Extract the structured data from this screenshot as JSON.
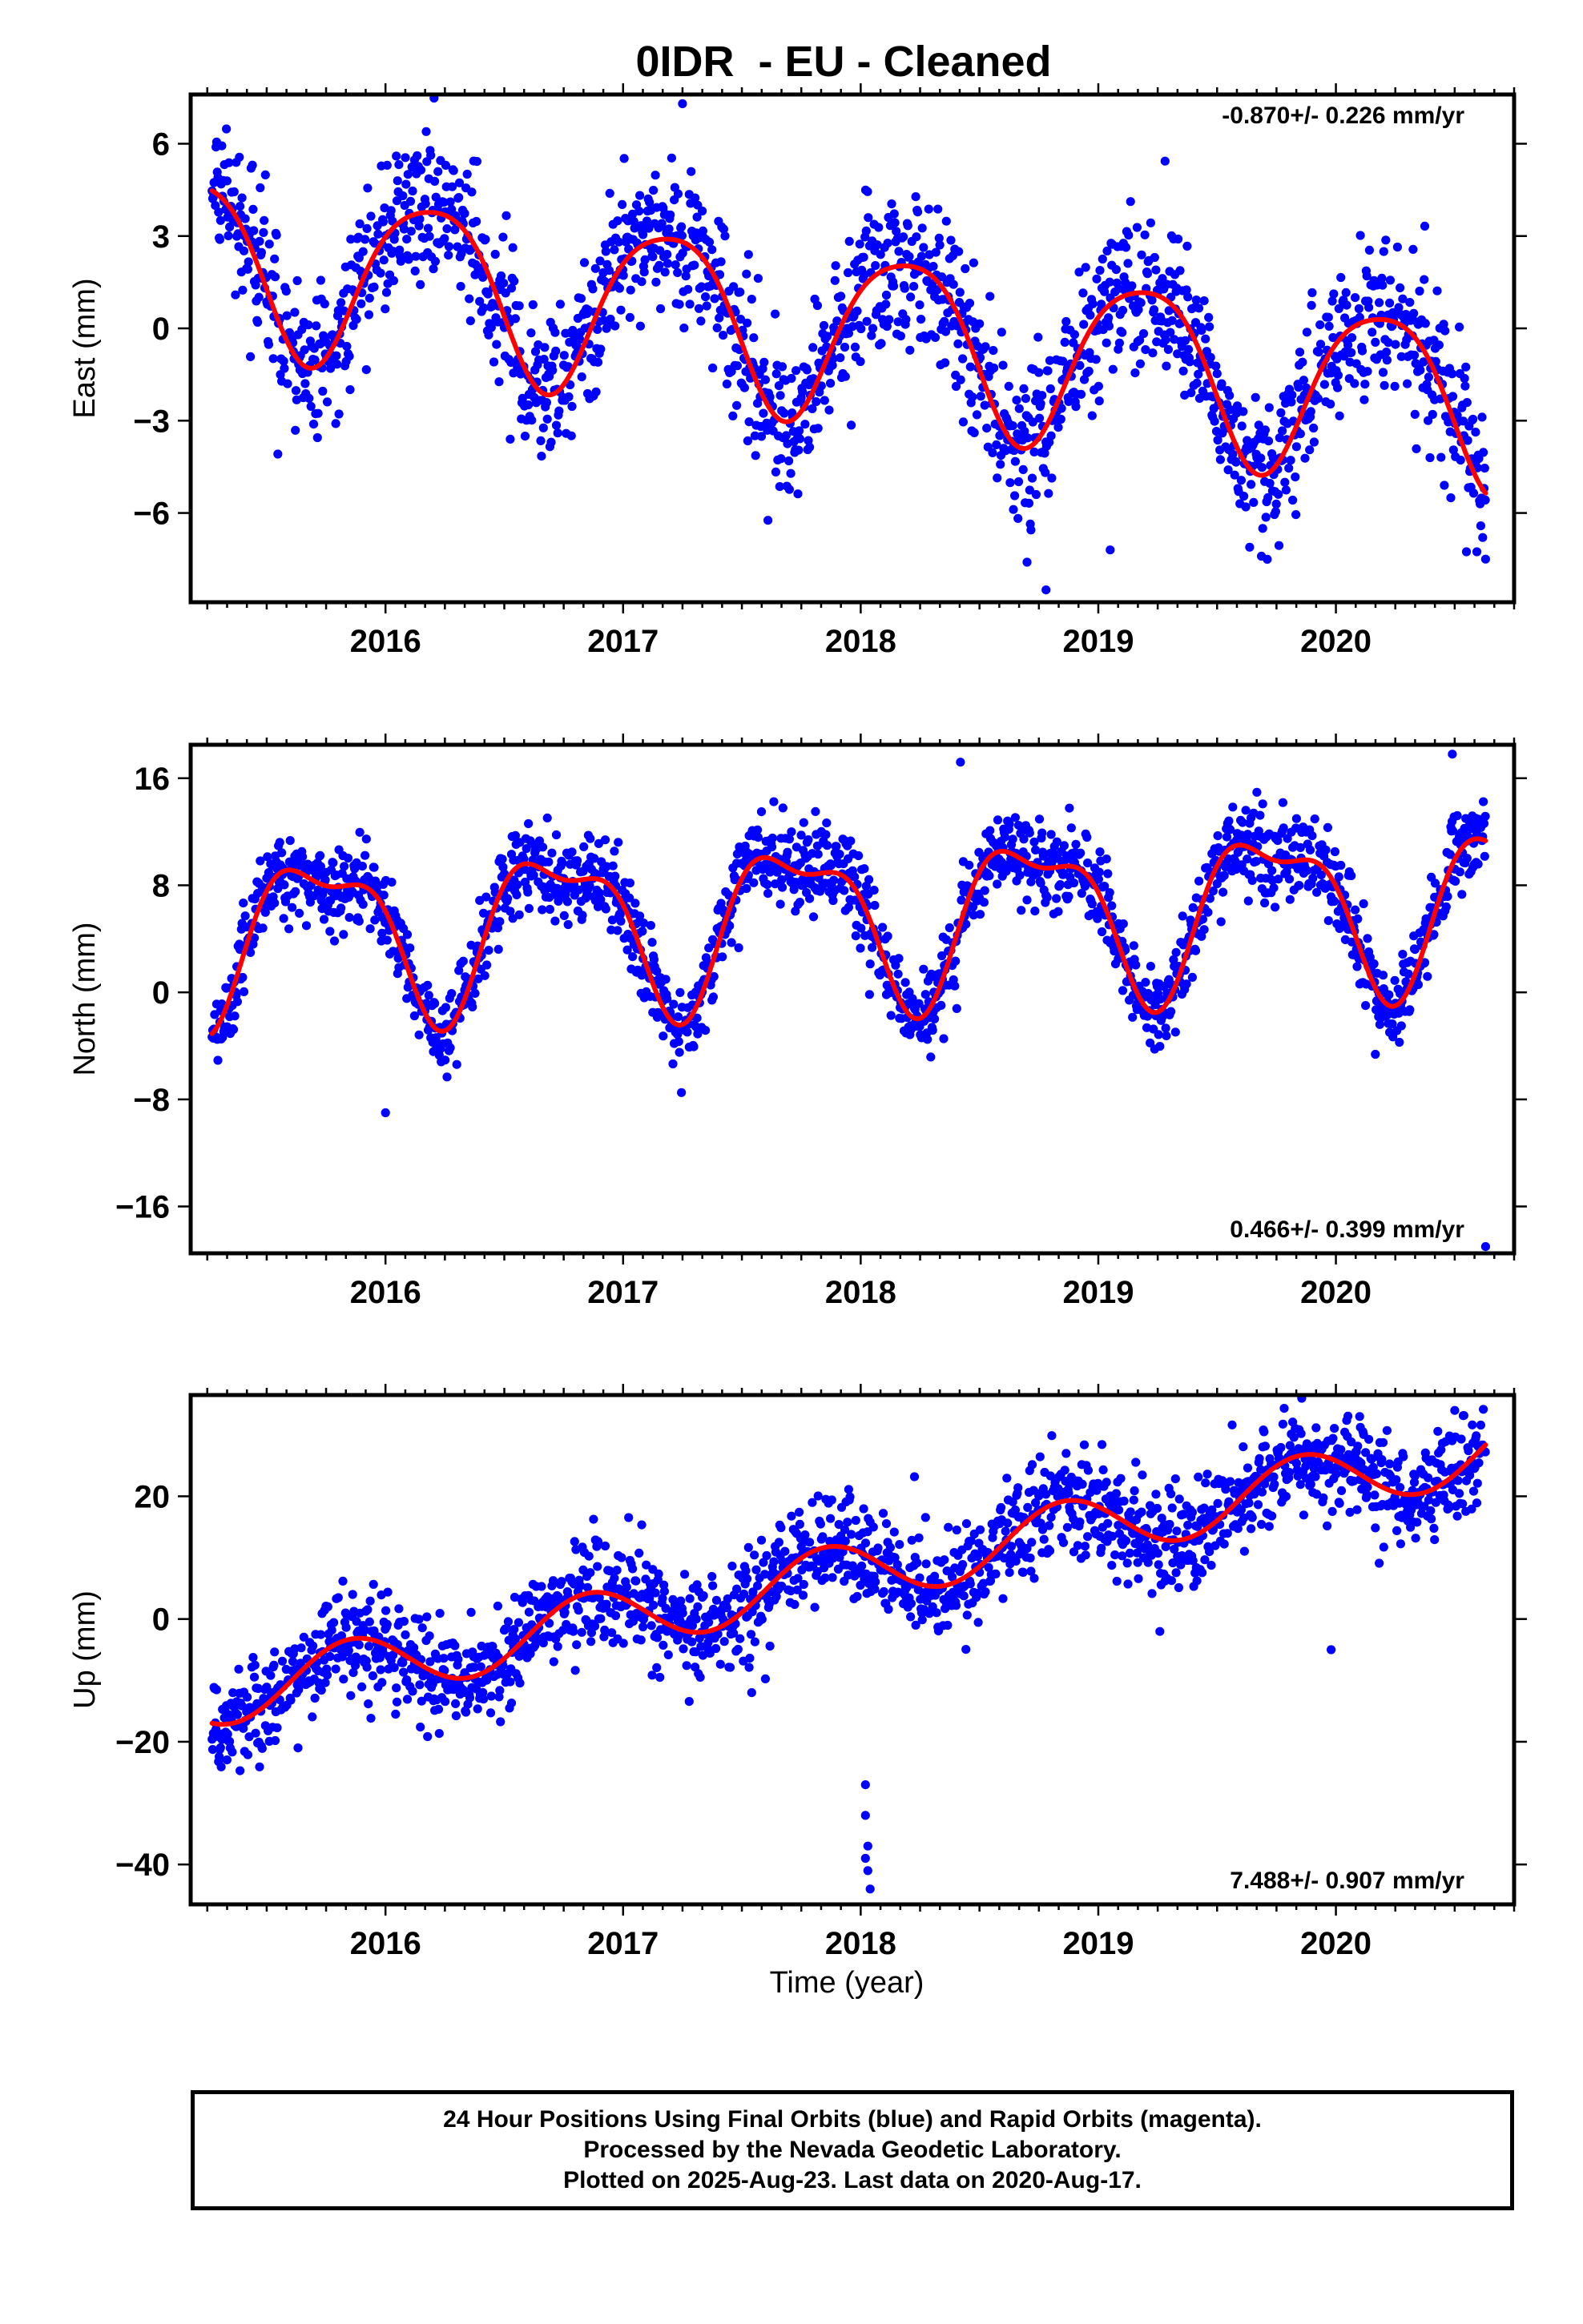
{
  "title": "0IDR  - EU - Cleaned",
  "x_axis_label": "Time (year)",
  "footer": {
    "line1": "24 Hour Positions Using Final Orbits (blue) and Rapid Orbits (magenta).",
    "line2": "Processed by the Nevada Geodetic Laboratory.",
    "line3": "Plotted on 2025-Aug-23. Last data on 2020-Aug-17."
  },
  "colors": {
    "points": "#0000ff",
    "model": "#ff0000",
    "axis": "#000000"
  },
  "chart_data": [
    {
      "type": "scatter",
      "component": "east",
      "ylabel": "East (mm)",
      "rate_text": "-0.870+/- 0.226 mm/yr",
      "rate_position": "top-right",
      "xlim": [
        2015.18,
        2020.75
      ],
      "ylim": [
        -8.9,
        7.6
      ],
      "xticks": [
        2016,
        2017,
        2018,
        2019,
        2020
      ],
      "yticks": [
        6,
        3,
        0,
        -3,
        -6
      ],
      "ytick_labels": [
        "6",
        "3",
        "0",
        "−3",
        "−6"
      ],
      "model": {
        "rate_mm_per_yr": -0.87,
        "offset_mm": -2.4,
        "reference_year": 2020.63,
        "annual_amp": 2.75,
        "annual_phase": 0.4,
        "semiannual_amp": 0.45,
        "semiannual_phase": 2.5
      },
      "noise_sd_mm": 1.25,
      "outliers": [
        {
          "x": 2017.25,
          "y": 7.3
        },
        {
          "x": 2018.78,
          "y": -8.5
        },
        {
          "x": 2020.63,
          "y": -7.5
        },
        {
          "x": 2018.7,
          "y": -7.6
        },
        {
          "x": 2019.05,
          "y": -7.2
        }
      ]
    },
    {
      "type": "scatter",
      "component": "north",
      "ylabel": "North (mm)",
      "rate_text": "0.466+/- 0.399 mm/yr",
      "rate_position": "bottom-right",
      "xlim": [
        2015.18,
        2020.75
      ],
      "ylim": [
        -19.5,
        18.5
      ],
      "xticks": [
        2016,
        2017,
        2018,
        2019,
        2020
      ],
      "yticks": [
        16,
        8,
        0,
        -8,
        -16
      ],
      "ytick_labels": [
        "16",
        "8",
        "0",
        "−8",
        "−16"
      ],
      "model": {
        "rate_mm_per_yr": 0.466,
        "offset_mm": 6.9,
        "reference_year": 2020.63,
        "annual_amp": 5.6,
        "annual_phase": 3.3,
        "semiannual_amp": 2.2,
        "semiannual_phase": 1.6
      },
      "noise_sd_mm": 1.6,
      "outliers": [
        {
          "x": 2020.63,
          "y": -19.0
        },
        {
          "x": 2018.42,
          "y": 17.2
        },
        {
          "x": 2020.49,
          "y": 17.8
        },
        {
          "x": 2016.0,
          "y": -9.0
        }
      ]
    },
    {
      "type": "scatter",
      "component": "up",
      "ylabel": "Up (mm)",
      "rate_text": "7.488+/- 0.907 mm/yr",
      "rate_position": "bottom-right",
      "xlim": [
        2015.18,
        2020.75
      ],
      "ylim": [
        -46.5,
        36.5
      ],
      "xticks": [
        2016,
        2017,
        2018,
        2019,
        2020
      ],
      "yticks": [
        20,
        0,
        -20,
        -40
      ],
      "ytick_labels": [
        "20",
        "0",
        "−20",
        "−40"
      ],
      "model": {
        "rate_mm_per_yr": 7.488,
        "offset_mm": 27.5,
        "reference_year": 2020.63,
        "annual_amp": 5.0,
        "annual_phase": 2.5,
        "semiannual_amp": 0.0,
        "semiannual_phase": 0.0
      },
      "noise_sd_mm": 4.2,
      "outliers": [
        {
          "x": 2018.02,
          "y": -27
        },
        {
          "x": 2018.02,
          "y": -32
        },
        {
          "x": 2018.03,
          "y": -37
        },
        {
          "x": 2018.02,
          "y": -39
        },
        {
          "x": 2018.03,
          "y": -41
        },
        {
          "x": 2018.04,
          "y": -44
        },
        {
          "x": 2019.98,
          "y": -5
        },
        {
          "x": 2020.5,
          "y": 34
        },
        {
          "x": 2020.1,
          "y": 33
        }
      ]
    }
  ]
}
